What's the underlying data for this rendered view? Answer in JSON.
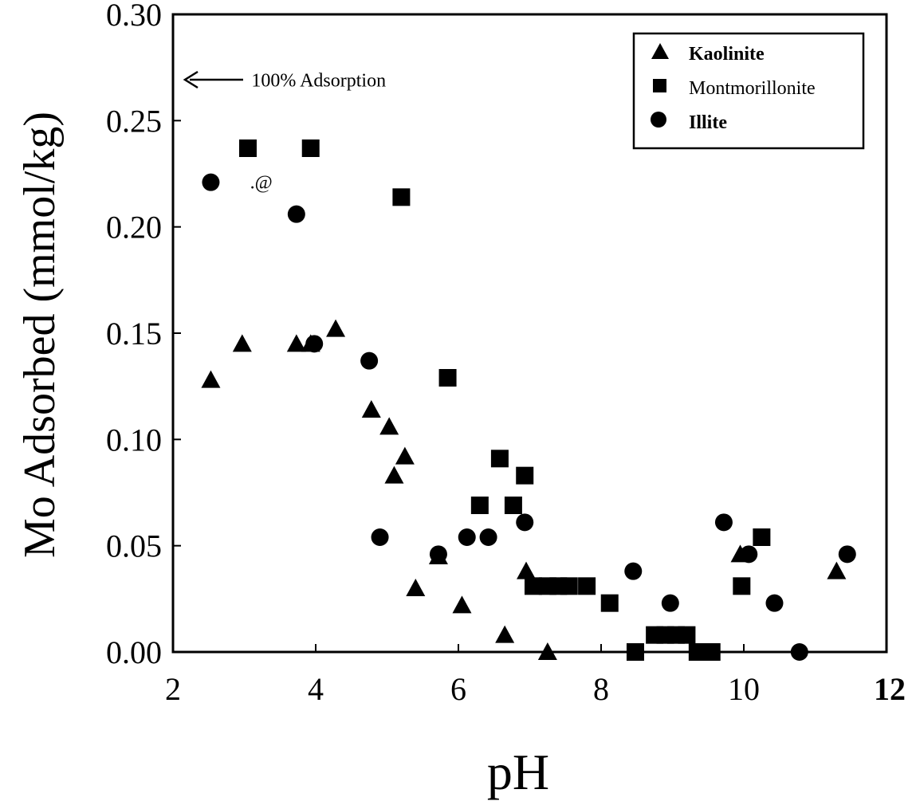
{
  "chart_data": {
    "type": "scatter",
    "xlabel": "pH",
    "ylabel": "Mo Adsorbed (mmol/kg)",
    "xlim": [
      2,
      12
    ],
    "ylim": [
      0,
      0.3
    ],
    "x_ticks": [
      "2",
      "4",
      "6",
      "8",
      "10",
      "12"
    ],
    "y_ticks": [
      "0.00",
      "0.05",
      "0.10",
      "0.15",
      "0.20",
      "0.25",
      "0.30"
    ],
    "grid": false,
    "legend_position": "top-right",
    "annotations": [
      {
        "text": "100% Adsorption",
        "x": 2.15,
        "y": 0.269
      },
      {
        "text": ".@",
        "x": 3.08,
        "y": 0.221
      }
    ],
    "series": [
      {
        "name": "Kaolinite",
        "marker": "triangle",
        "points": [
          [
            2.53,
            0.128
          ],
          [
            2.97,
            0.145
          ],
          [
            3.73,
            0.145
          ],
          [
            3.93,
            0.145
          ],
          [
            4.28,
            0.152
          ],
          [
            4.78,
            0.114
          ],
          [
            5.03,
            0.106
          ],
          [
            5.1,
            0.083
          ],
          [
            5.25,
            0.092
          ],
          [
            5.4,
            0.03
          ],
          [
            5.72,
            0.045
          ],
          [
            6.05,
            0.022
          ],
          [
            6.65,
            0.008
          ],
          [
            6.95,
            0.038
          ],
          [
            7.25,
            0.0
          ],
          [
            9.95,
            0.046
          ],
          [
            11.3,
            0.038
          ]
        ]
      },
      {
        "name": "Montmorillonite",
        "marker": "square",
        "points": [
          [
            3.05,
            0.237
          ],
          [
            3.93,
            0.237
          ],
          [
            5.2,
            0.214
          ],
          [
            5.85,
            0.129
          ],
          [
            6.3,
            0.069
          ],
          [
            6.58,
            0.091
          ],
          [
            6.77,
            0.069
          ],
          [
            6.93,
            0.083
          ],
          [
            7.05,
            0.031
          ],
          [
            7.25,
            0.031
          ],
          [
            7.4,
            0.031
          ],
          [
            7.55,
            0.031
          ],
          [
            7.8,
            0.031
          ],
          [
            8.12,
            0.023
          ],
          [
            8.48,
            0.0
          ],
          [
            8.75,
            0.008
          ],
          [
            8.9,
            0.008
          ],
          [
            9.05,
            0.008
          ],
          [
            9.2,
            0.008
          ],
          [
            9.35,
            0.0
          ],
          [
            9.55,
            0.0
          ],
          [
            9.97,
            0.031
          ],
          [
            10.25,
            0.054
          ]
        ]
      },
      {
        "name": "Illite",
        "marker": "circle",
        "points": [
          [
            2.53,
            0.221
          ],
          [
            3.73,
            0.206
          ],
          [
            3.98,
            0.145
          ],
          [
            4.75,
            0.137
          ],
          [
            4.9,
            0.054
          ],
          [
            5.72,
            0.046
          ],
          [
            6.12,
            0.054
          ],
          [
            6.42,
            0.054
          ],
          [
            6.93,
            0.061
          ],
          [
            8.45,
            0.038
          ],
          [
            8.97,
            0.023
          ],
          [
            9.72,
            0.061
          ],
          [
            10.07,
            0.046
          ],
          [
            10.43,
            0.023
          ],
          [
            10.78,
            0.0
          ],
          [
            11.45,
            0.046
          ]
        ]
      }
    ]
  }
}
